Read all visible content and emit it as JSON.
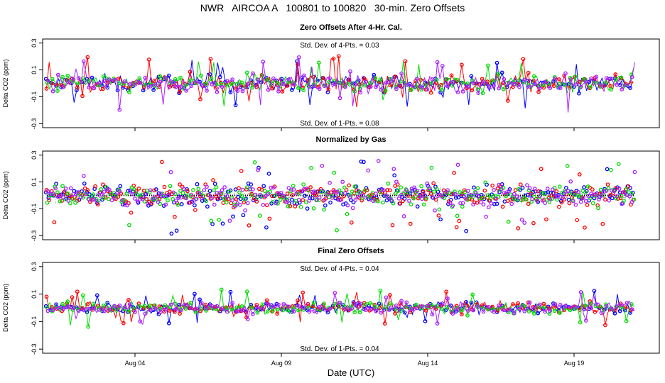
{
  "title": "NWR   AIRCOA A   100801 to 100820   30-min. Zero Offsets",
  "xlabel": "Date (UTC)",
  "x_ticks": [
    "Aug 04",
    "Aug 09",
    "Aug 14",
    "Aug 19"
  ],
  "colors": {
    "series": [
      "#0000ff",
      "#ff0000",
      "#00dd00",
      "#aa22ff"
    ],
    "reference": "#000000"
  },
  "chart_data": [
    {
      "type": "line",
      "title": "Zero Offsets After 4-Hr. Cal.",
      "ylabel": "Delta CO2 (ppm)",
      "ylim": [
        -0.33,
        0.33
      ],
      "yticks": [
        "0.3",
        "0.1",
        "-0.1",
        "-0.3"
      ],
      "ytick_values": [
        0.3,
        0.1,
        -0.1,
        -0.3
      ],
      "xlim": [
        "Aug 01",
        "Aug 22"
      ],
      "annotations": [
        "Std. Dev. of 4-Pts. = 0.03",
        "Std. Dev. of 1-Pts. = 0.08"
      ],
      "series_spread": 0.07,
      "reference_line": false
    },
    {
      "type": "scatter",
      "title": "Normalized by Gas",
      "ylabel": "Delta CO2 (ppm)",
      "ylim": [
        -0.33,
        0.33
      ],
      "yticks": [
        "0.3",
        "0.1",
        "-0.1",
        "-0.3"
      ],
      "ytick_values": [
        0.3,
        0.1,
        -0.1,
        -0.3
      ],
      "xlim": [
        "Aug 01",
        "Aug 22"
      ],
      "annotations": [],
      "series_spread": 0.09,
      "reference_line": true
    },
    {
      "type": "line",
      "title": "Final Zero Offsets",
      "ylabel": "Delta CO2 (ppm)",
      "ylim": [
        -0.33,
        0.33
      ],
      "yticks": [
        "0.3",
        "0.1",
        "-0.1",
        "-0.3"
      ],
      "ytick_values": [
        0.3,
        0.1,
        -0.1,
        -0.3
      ],
      "xlim": [
        "Aug 01",
        "Aug 22"
      ],
      "annotations": [
        "Std. Dev. of 4-Pts. = 0.04",
        "Std. Dev. of 1-Pts. = 0.04"
      ],
      "series_spread": 0.045,
      "reference_line": false
    }
  ]
}
